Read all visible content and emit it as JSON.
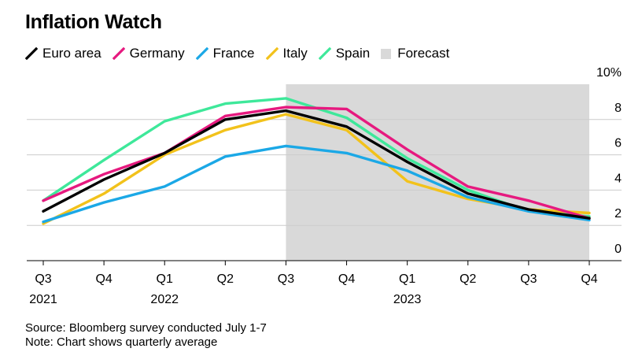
{
  "title": "Inflation Watch",
  "footer": {
    "source": "Source: Bloomberg survey conducted July 1-7",
    "note": "Note: Chart shows quarterly average"
  },
  "legend": {
    "forecast_label": "Forecast",
    "forecast_color": "#d9d9d9"
  },
  "chart_data": {
    "type": "line",
    "title": "Inflation Watch",
    "x": [
      "Q3 2021",
      "Q4 2021",
      "Q1 2022",
      "Q2 2022",
      "Q3 2022",
      "Q4 2022",
      "Q1 2023",
      "Q2 2023",
      "Q3 2023",
      "Q4 2023"
    ],
    "x_tick_labels": [
      {
        "q": "Q3",
        "year": "2021"
      },
      {
        "q": "Q4",
        "year": ""
      },
      {
        "q": "Q1",
        "year": "2022"
      },
      {
        "q": "Q2",
        "year": ""
      },
      {
        "q": "Q3",
        "year": ""
      },
      {
        "q": "Q4",
        "year": ""
      },
      {
        "q": "Q1",
        "year": "2023"
      },
      {
        "q": "Q2",
        "year": ""
      },
      {
        "q": "Q3",
        "year": ""
      },
      {
        "q": "Q4",
        "year": ""
      }
    ],
    "ylim": [
      0,
      10
    ],
    "y_ticks": [
      0,
      2,
      4,
      6,
      8,
      10
    ],
    "y_tick_labels": [
      "0",
      "2",
      "4",
      "6",
      "8",
      "10%"
    ],
    "grid": true,
    "legend_position": "top-left",
    "forecast_start": "Q3 2022",
    "forecast_end": "Q4 2023",
    "series": [
      {
        "name": "Euro area",
        "color": "#000000",
        "values": [
          2.8,
          4.6,
          6.1,
          8.0,
          8.5,
          7.6,
          5.6,
          3.8,
          2.9,
          2.4
        ]
      },
      {
        "name": "Germany",
        "color": "#e6197f",
        "values": [
          3.4,
          4.9,
          6.1,
          8.2,
          8.7,
          8.6,
          6.3,
          4.2,
          3.4,
          2.4
        ]
      },
      {
        "name": "France",
        "color": "#1ba8e6",
        "values": [
          2.2,
          3.3,
          4.2,
          5.9,
          6.5,
          6.1,
          5.1,
          3.6,
          2.8,
          2.3
        ]
      },
      {
        "name": "Italy",
        "color": "#f2c21b",
        "values": [
          2.1,
          3.8,
          6.0,
          7.4,
          8.3,
          7.4,
          4.5,
          3.5,
          2.9,
          2.7
        ]
      },
      {
        "name": "Spain",
        "color": "#3ee89a",
        "values": [
          3.4,
          5.7,
          7.9,
          8.9,
          9.2,
          8.1,
          5.8,
          4.0,
          2.8,
          2.5
        ]
      }
    ]
  }
}
